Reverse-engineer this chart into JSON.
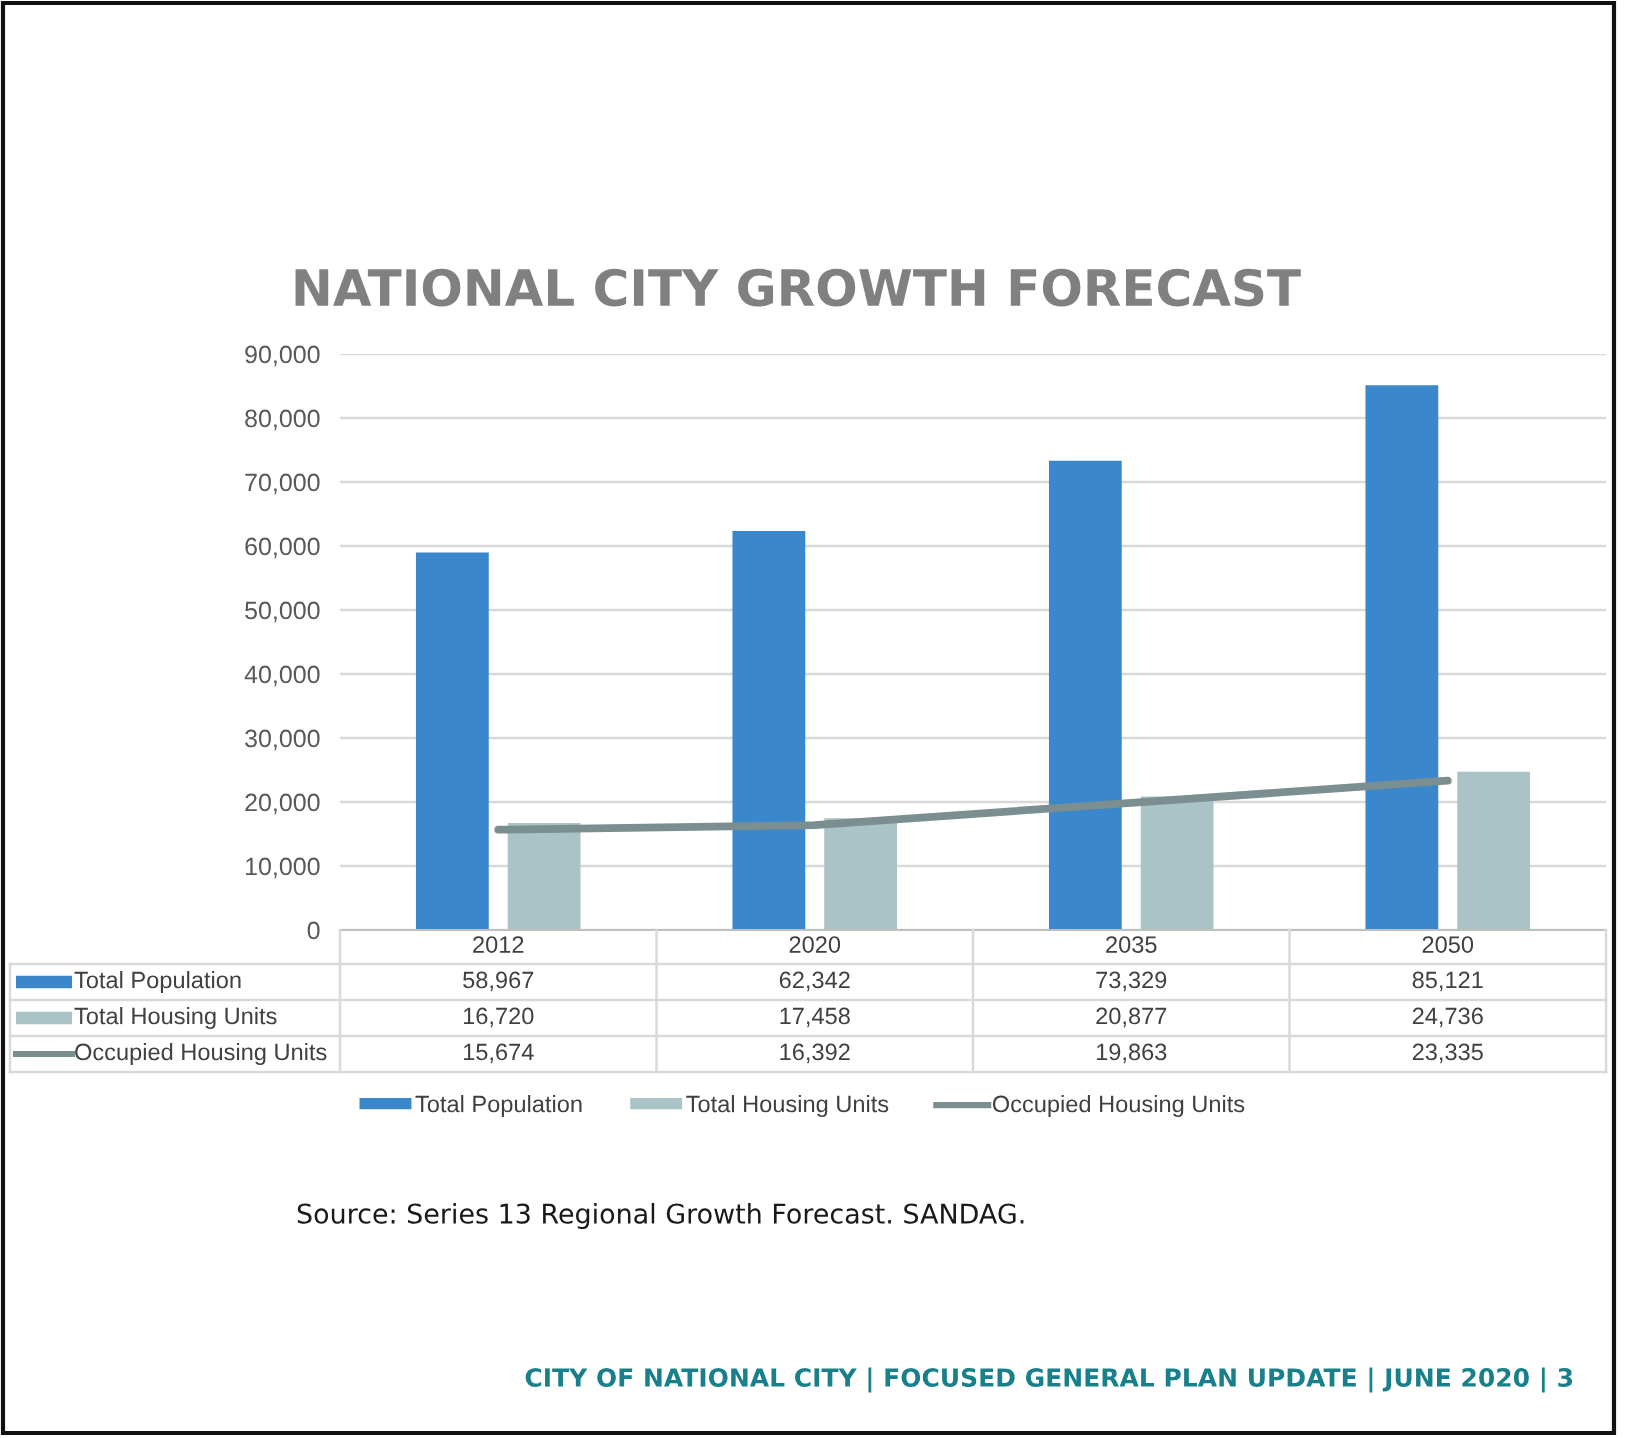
{
  "chart_data": {
    "type": "bar",
    "title": "NATIONAL CITY GROWTH FORECAST",
    "categories": [
      "2012",
      "2020",
      "2035",
      "2050"
    ],
    "series": [
      {
        "name": "Total Population",
        "color": "#3a87cc",
        "values": [
          58967,
          62342,
          73329,
          85121
        ],
        "value_labels": [
          "58,967",
          "62,342",
          "73,329",
          "85,121"
        ]
      },
      {
        "name": "Total Housing Units",
        "color": "#a9c3c7",
        "values": [
          16720,
          17458,
          20877,
          24736
        ],
        "value_labels": [
          "16,720",
          "17,458",
          "20,877",
          "24,736"
        ]
      },
      {
        "name": "Occupied Housing Units",
        "type": "line",
        "color": "#7b8e90",
        "values": [
          15674,
          16392,
          19863,
          23335
        ],
        "value_labels": [
          "15,674",
          "16,392",
          "19,863",
          "23,335"
        ]
      }
    ],
    "ylim": [
      0,
      90000
    ],
    "yticks": [
      0,
      {
        "value": 10000,
        "label": "10,000"
      },
      {
        "value": 20000,
        "label": "20,000"
      },
      {
        "value": 30000,
        "label": "30,000"
      },
      {
        "value": 40000,
        "label": "40,000"
      },
      {
        "value": 50000,
        "label": "50,000"
      },
      {
        "value": 60000,
        "label": "60,000"
      },
      {
        "value": 70000,
        "label": "70,000"
      },
      {
        "value": 80000,
        "label": "80,000"
      },
      {
        "value": 90000,
        "label": "90,000"
      }
    ],
    "grid": "y",
    "legend": "bottom",
    "marker": "none",
    "line_style": "solid",
    "annotations": [
      "Source: Series 13 Regional Growth Forecast. SANDAG.",
      "CITY OF NATIONAL CITY | FOCUSED GENERAL PLAN UPDATE | JUNE 2020 | 3"
    ]
  }
}
